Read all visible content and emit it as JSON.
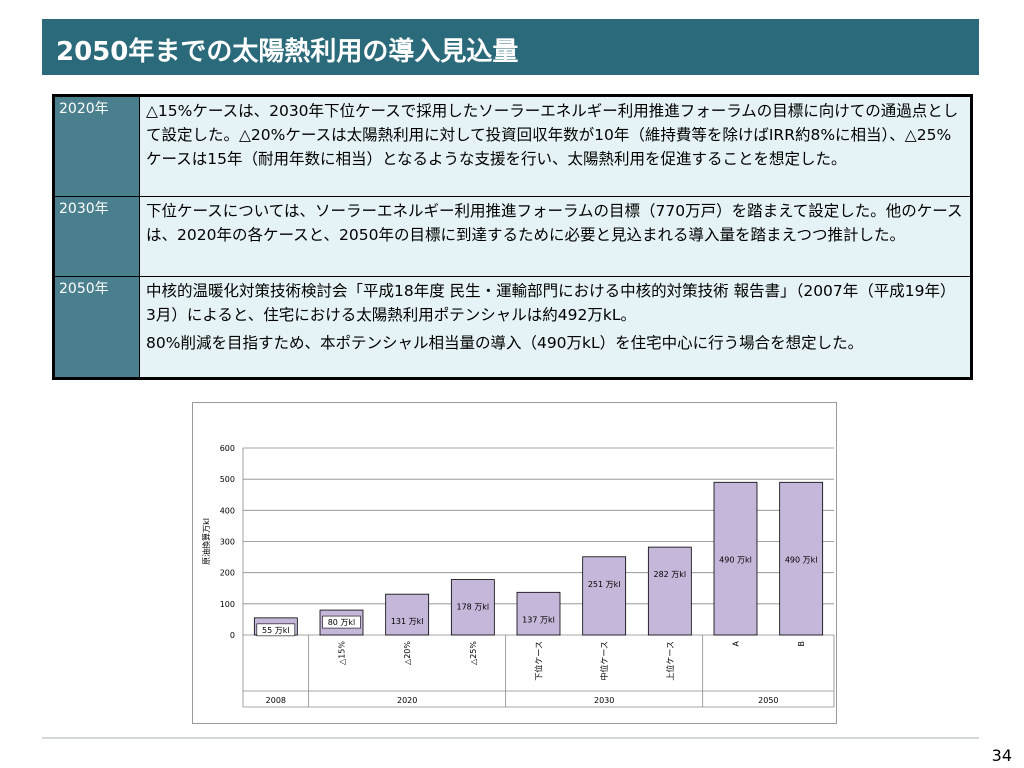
{
  "slide": {
    "title": "2050年までの太陽熱利用の導入見込量",
    "page_number": "34"
  },
  "table": {
    "rows": [
      {
        "year": "2020年",
        "paragraphs": [
          "△15%ケースは、2030年下位ケースで採用したソーラーエネルギー利用推進フォーラムの目標に向けての通過点として設定した。△20%ケースは太陽熱利用に対して投資回収年数が10年（維持費等を除けばIRR約8%に相当）、△25%ケースは15年（耐用年数に相当）となるような支援を行い、太陽熱利用を促進することを想定した。"
        ]
      },
      {
        "year": "2030年",
        "paragraphs": [
          "下位ケースについては、ソーラーエネルギー利用推進フォーラムの目標（770万戸）を踏まえて設定した。他のケースは、2020年の各ケースと、2050年の目標に到達するために必要と見込まれる導入量を踏まえつつ推計した。"
        ]
      },
      {
        "year": "2050年",
        "paragraphs": [
          "中核的温暖化対策技術検討会「平成18年度 民生・運輸部門における中核的対策技術 報告書」（2007年（平成19年）3月）によると、住宅における太陽熱利用ポテンシャルは約492万kL。",
          "80%削減を目指すため、本ポテンシャル相当量の導入（490万kL）を住宅中心に行う場合を想定した。"
        ]
      }
    ]
  },
  "chart_data": {
    "type": "bar",
    "ylabel": "原油換算万kl",
    "ylim": [
      0,
      600
    ],
    "yticks": [
      "0",
      "100",
      "200",
      "300",
      "400",
      "500",
      "600"
    ],
    "grid": true,
    "categories": [
      "",
      "△15%",
      "△20%",
      "△25%",
      "下位ケース",
      "中位ケース",
      "上位ケース",
      "A",
      "B"
    ],
    "values": [
      55,
      80,
      131,
      178,
      137,
      251,
      282,
      490,
      490
    ],
    "data_labels": [
      "55 万kl",
      "80 万kl",
      "131 万kl",
      "178 万kl",
      "137 万kl",
      "251 万kl",
      "282 万kl",
      "490 万kl",
      "490 万kl"
    ],
    "groups": [
      {
        "label": "2008",
        "span": 1
      },
      {
        "label": "2020",
        "span": 3
      },
      {
        "label": "2030",
        "span": 3
      },
      {
        "label": "2050",
        "span": 2
      }
    ],
    "bar_color": "#c4b7d9",
    "bar_edge_color": "#000000"
  }
}
